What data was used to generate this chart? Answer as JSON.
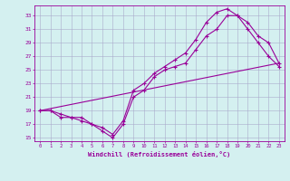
{
  "xlabel": "Windchill (Refroidissement éolien,°C)",
  "bg_color": "#d4f0f0",
  "line_color": "#990099",
  "grid_color": "#aaaacc",
  "xlim": [
    -0.5,
    23.5
  ],
  "ylim": [
    14.5,
    34.5
  ],
  "yticks": [
    15,
    17,
    19,
    21,
    23,
    25,
    27,
    29,
    31,
    33
  ],
  "xticks": [
    0,
    1,
    2,
    3,
    4,
    5,
    6,
    7,
    8,
    9,
    10,
    11,
    12,
    13,
    14,
    15,
    16,
    17,
    18,
    19,
    20,
    21,
    22,
    23
  ],
  "line1_x": [
    0,
    1,
    2,
    3,
    4,
    5,
    6,
    7,
    8,
    9,
    10,
    11,
    12,
    13,
    14,
    15,
    16,
    17,
    18,
    19,
    20,
    21,
    22,
    23
  ],
  "line1_y": [
    19,
    19,
    18,
    18,
    17.5,
    17,
    16,
    15,
    17,
    21,
    22,
    24,
    25,
    25.5,
    26,
    28,
    30,
    31,
    33,
    33,
    32,
    30,
    29,
    26
  ],
  "line2_x": [
    0,
    1,
    2,
    3,
    4,
    5,
    6,
    7,
    8,
    9,
    10,
    11,
    12,
    13,
    14,
    15,
    16,
    17,
    18,
    19,
    20,
    21,
    22,
    23
  ],
  "line2_y": [
    19,
    19,
    18.5,
    18,
    18,
    17,
    16.5,
    15.5,
    17.5,
    22,
    23,
    24.5,
    25.5,
    26.5,
    27.5,
    29.5,
    32,
    33.5,
    34,
    33,
    31,
    29,
    27,
    25.5
  ],
  "line3_x": [
    0,
    23
  ],
  "line3_y": [
    19,
    26
  ]
}
